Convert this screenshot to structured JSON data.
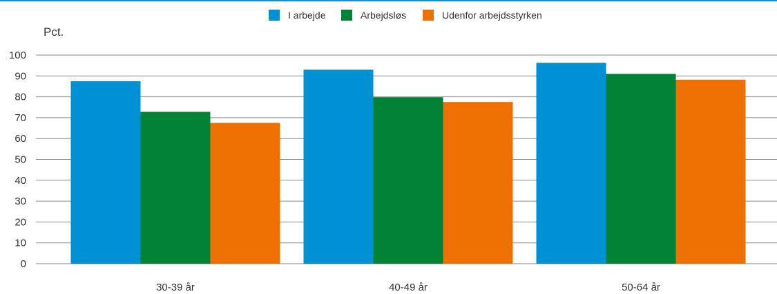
{
  "chart_data": {
    "type": "bar",
    "title": "",
    "ylabel": "Pct.",
    "xlabel": "",
    "ylim": [
      0,
      100
    ],
    "yticks": [
      0,
      10,
      20,
      30,
      40,
      50,
      60,
      70,
      80,
      90,
      100
    ],
    "grid": true,
    "legend_position": "top-center",
    "categories": [
      "30-39 år",
      "40-49 år",
      "50-64 år"
    ],
    "series": [
      {
        "name": "I arbejde",
        "color": "#0090d4",
        "values": [
          87.5,
          93.0,
          96.3
        ]
      },
      {
        "name": "Arbejdsløs",
        "color": "#008335",
        "values": [
          72.8,
          79.8,
          91.0
        ]
      },
      {
        "name": "Udenfor arbejdsstyrken",
        "color": "#ed7000",
        "values": [
          67.5,
          77.5,
          88.2
        ]
      }
    ]
  },
  "colors": {
    "top_rule": "#1a8ec8",
    "gridline": "#8a8a8a",
    "axis_text": "#333333"
  }
}
